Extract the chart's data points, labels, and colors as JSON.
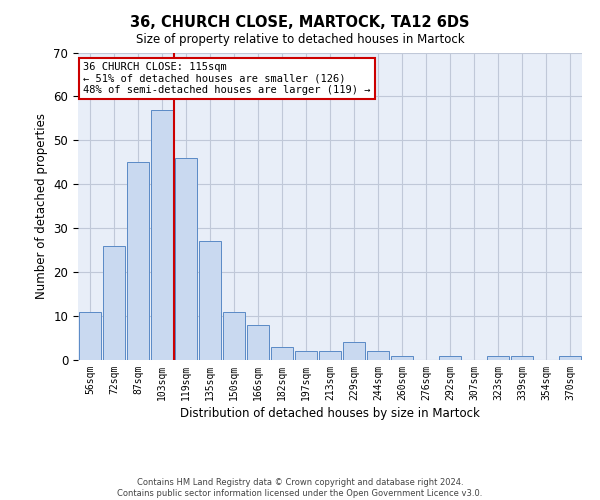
{
  "title": "36, CHURCH CLOSE, MARTOCK, TA12 6DS",
  "subtitle": "Size of property relative to detached houses in Martock",
  "xlabel": "Distribution of detached houses by size in Martock",
  "ylabel": "Number of detached properties",
  "bar_labels": [
    "56sqm",
    "72sqm",
    "87sqm",
    "103sqm",
    "119sqm",
    "135sqm",
    "150sqm",
    "166sqm",
    "182sqm",
    "197sqm",
    "213sqm",
    "229sqm",
    "244sqm",
    "260sqm",
    "276sqm",
    "292sqm",
    "307sqm",
    "323sqm",
    "339sqm",
    "354sqm",
    "370sqm"
  ],
  "bar_heights": [
    11,
    26,
    45,
    57,
    46,
    27,
    11,
    8,
    3,
    2,
    2,
    4,
    2,
    1,
    0,
    1,
    0,
    1,
    1,
    0,
    1
  ],
  "bar_color": "#c9d9f0",
  "bar_edge_color": "#5a8ac6",
  "vline_color": "#cc0000",
  "vline_x_index": 3.5,
  "ylim": [
    0,
    70
  ],
  "yticks": [
    0,
    10,
    20,
    30,
    40,
    50,
    60,
    70
  ],
  "annotation_line1": "36 CHURCH CLOSE: 115sqm",
  "annotation_line2": "← 51% of detached houses are smaller (126)",
  "annotation_line3": "48% of semi-detached houses are larger (119) →",
  "annotation_box_color": "#cc0000",
  "footnote": "Contains HM Land Registry data © Crown copyright and database right 2024.\nContains public sector information licensed under the Open Government Licence v3.0.",
  "background_color": "#ffffff",
  "ax_background_color": "#e8eef8",
  "grid_color": "#c0c8d8"
}
